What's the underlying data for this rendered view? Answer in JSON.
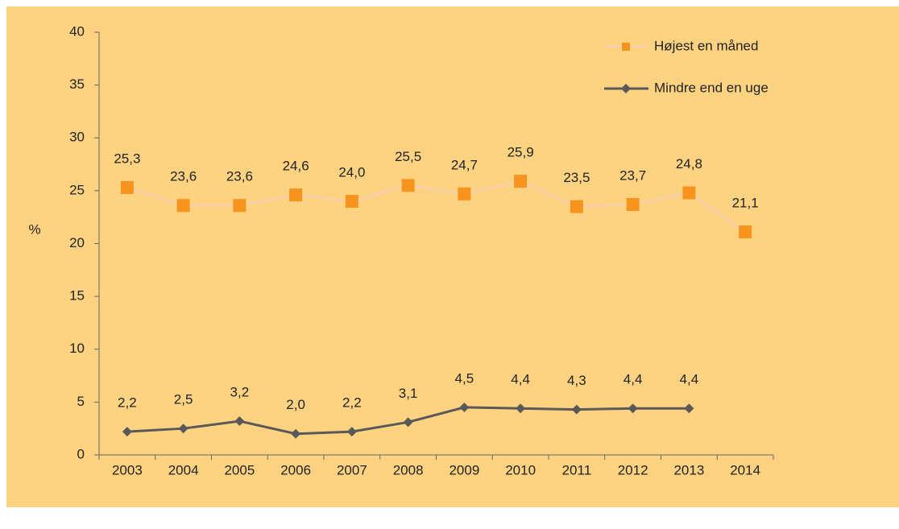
{
  "chart_data": {
    "type": "line",
    "categories": [
      "2003",
      "2004",
      "2005",
      "2006",
      "2007",
      "2008",
      "2009",
      "2010",
      "2011",
      "2012",
      "2013",
      "2014"
    ],
    "ylabel": "%",
    "ylim": [
      0,
      40
    ],
    "yticks": [
      0,
      5,
      10,
      15,
      20,
      25,
      30,
      35,
      40
    ],
    "legend": "top-right",
    "series": [
      {
        "name": "Højest en måned",
        "color": "#f7941d",
        "line_color": "#fbcfaa",
        "marker": "square",
        "values": [
          25.3,
          23.6,
          23.6,
          24.6,
          24.0,
          25.5,
          24.7,
          25.9,
          23.5,
          23.7,
          24.8,
          21.1
        ],
        "value_labels": [
          "25,3",
          "23,6",
          "23,6",
          "24,6",
          "24,0",
          "25,5",
          "24,7",
          "25,9",
          "23,5",
          "23,7",
          "24,8",
          "21,1"
        ]
      },
      {
        "name": "Mindre end en uge",
        "color": "#595959",
        "line_color": "#595959",
        "marker": "diamond",
        "values": [
          2.2,
          2.5,
          3.2,
          2.0,
          2.2,
          3.1,
          4.5,
          4.4,
          4.3,
          4.4,
          4.4,
          null
        ],
        "value_labels": [
          "2,2",
          "2,5",
          "3,2",
          "2,0",
          "2,2",
          "3,1",
          "4,5",
          "4,4",
          "4,3",
          "4,4",
          "4,4",
          null
        ]
      }
    ]
  }
}
